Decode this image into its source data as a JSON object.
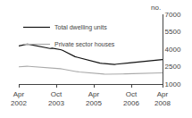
{
  "chart_data": {
    "type": "line",
    "ylabel": "no.",
    "categories": [
      "Apr\n2002",
      null,
      null,
      null,
      null,
      null,
      null,
      null,
      null,
      null,
      null,
      null,
      null,
      null,
      null,
      null,
      null,
      null,
      "Oct\n2003",
      null,
      null,
      null,
      null,
      null,
      null,
      null,
      null,
      null,
      null,
      null,
      null,
      null,
      null,
      null,
      null,
      null,
      "Apr\n2005",
      null,
      null,
      null,
      null,
      null,
      null,
      null,
      null,
      null,
      null,
      null,
      null,
      null,
      null,
      null,
      null,
      null,
      "Oct\n2006",
      null,
      null,
      null,
      null,
      null,
      null,
      null,
      null,
      null,
      null,
      null,
      null,
      null,
      null,
      "Apr\n2008"
    ],
    "series": [
      {
        "name": "Total dwelling units",
        "color": "#111111",
        "values": [
          4280,
          4320,
          4360,
          4400,
          4430,
          4410,
          4370,
          4340,
          4310,
          4290,
          4260,
          4220,
          4180,
          4130,
          4090,
          4060,
          4090,
          4070,
          4040,
          4000,
          3960,
          3900,
          3810,
          3710,
          3610,
          3510,
          3410,
          3360,
          3310,
          3260,
          3210,
          3160,
          3110,
          3060,
          3010,
          2960,
          2910,
          2860,
          2830,
          2800,
          2780,
          2760,
          2740,
          2720,
          2700,
          2680,
          2690,
          2710,
          2720,
          2740,
          2760,
          2780,
          2800,
          2820,
          2840,
          2860,
          2880,
          2900,
          2910,
          2930,
          2950,
          2970,
          2990,
          3010,
          3030,
          3050,
          3070,
          3090,
          3100,
          3110
        ]
      },
      {
        "name": "Private sector houses",
        "color": "#aaaaaa",
        "values": [
          2480,
          2500,
          2510,
          2520,
          2530,
          2520,
          2510,
          2500,
          2490,
          2480,
          2470,
          2450,
          2430,
          2410,
          2390,
          2370,
          2380,
          2370,
          2360,
          2350,
          2320,
          2290,
          2250,
          2220,
          2180,
          2150,
          2110,
          2080,
          2060,
          2040,
          2020,
          2000,
          1980,
          1960,
          1940,
          1920,
          1900,
          1890,
          1880,
          1870,
          1860,
          1850,
          1845,
          1840,
          1840,
          1840,
          1845,
          1850,
          1855,
          1860,
          1865,
          1870,
          1875,
          1880,
          1885,
          1890,
          1895,
          1900,
          1905,
          1910,
          1915,
          1920,
          1925,
          1930,
          1935,
          1940,
          1945,
          1950,
          1955,
          1960
        ]
      }
    ],
    "ylim": [
      1000,
      7000
    ],
    "yticks": [
      1000,
      2500,
      4000,
      5500,
      7000
    ],
    "grid": false,
    "legend": "upper left"
  }
}
